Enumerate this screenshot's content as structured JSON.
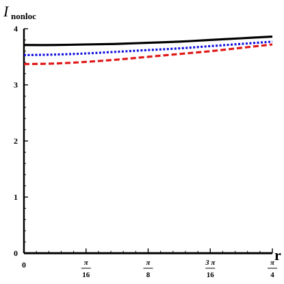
{
  "chart_data": {
    "type": "line",
    "ylabel": {
      "main": "I",
      "sub": "nonloc"
    },
    "xlabel": "r",
    "xlim": [
      0,
      0.7853981634
    ],
    "ylim": [
      0,
      4
    ],
    "y_ticks": [
      {
        "value": 0,
        "label": "0"
      },
      {
        "value": 1,
        "label": "1"
      },
      {
        "value": 2,
        "label": "2"
      },
      {
        "value": 3,
        "label": "3"
      },
      {
        "value": 4,
        "label": "4"
      }
    ],
    "x_ticks": [
      {
        "value": 0,
        "label": "0",
        "numerator": "",
        "denominator": ""
      },
      {
        "value": 0.1963495408,
        "label": "π/16",
        "numerator": "π",
        "denominator": "16"
      },
      {
        "value": 0.3926990817,
        "label": "π/8",
        "numerator": "π",
        "denominator": "8"
      },
      {
        "value": 0.5890486225,
        "label": "3π/16",
        "numerator": "3 π",
        "denominator": "16"
      },
      {
        "value": 0.7853981634,
        "label": "π/4",
        "numerator": "π",
        "denominator": "4"
      }
    ],
    "x": [
      0,
      0.0982,
      0.1963,
      0.2945,
      0.3927,
      0.4909,
      0.589,
      0.6872,
      0.7854
    ],
    "series": [
      {
        "color": "#000000",
        "dash": "solid",
        "values": [
          3.71,
          3.71,
          3.72,
          3.73,
          3.75,
          3.77,
          3.8,
          3.83,
          3.86
        ]
      },
      {
        "color": "#1010dd",
        "dash": "dotted",
        "values": [
          3.53,
          3.54,
          3.56,
          3.59,
          3.62,
          3.65,
          3.69,
          3.73,
          3.77
        ]
      },
      {
        "color": "#e01818",
        "dash": "dashed",
        "values": [
          3.37,
          3.38,
          3.41,
          3.45,
          3.5,
          3.55,
          3.6,
          3.66,
          3.72
        ]
      }
    ],
    "grid": false,
    "legend": "none"
  }
}
